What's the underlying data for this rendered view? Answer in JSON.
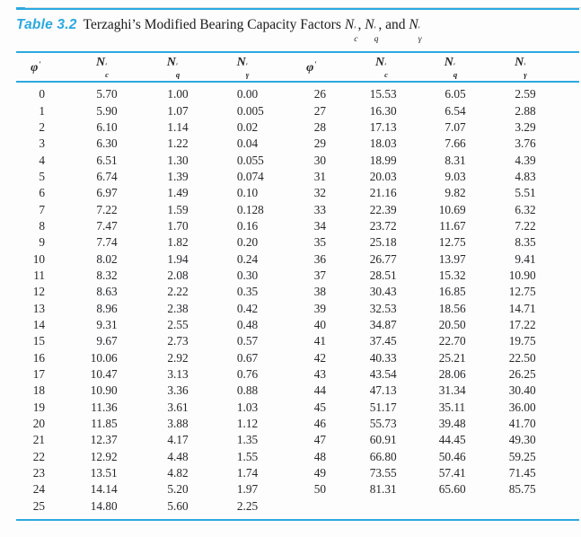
{
  "title": {
    "label": "Table 3.2",
    "text": "Terzaghi’s Modified Bearing Capacity Factors",
    "factors": [
      {
        "base": "N",
        "prime": "′",
        "sub": "c"
      },
      {
        "base": "N",
        "prime": "′",
        "sub": "q"
      },
      {
        "base": "N",
        "prime": "′",
        "sub": "γ"
      }
    ],
    "sep_1": ", ",
    "sep_2": ", and "
  },
  "table": {
    "headers": [
      {
        "base": "φ",
        "prime": "′",
        "sub": ""
      },
      {
        "base": "N",
        "prime": "′",
        "sub": "c"
      },
      {
        "base": "N",
        "prime": "′",
        "sub": "q"
      },
      {
        "base": "N",
        "prime": "′",
        "sub": "γ"
      },
      {
        "base": "φ",
        "prime": "′",
        "sub": ""
      },
      {
        "base": "N",
        "prime": "′",
        "sub": "c"
      },
      {
        "base": "N",
        "prime": "′",
        "sub": "q"
      },
      {
        "base": "N",
        "prime": "′",
        "sub": "γ"
      }
    ],
    "column_kinds": [
      "phi",
      "Nc",
      "Nq",
      "Ngamma",
      "phi",
      "Nc",
      "Nq",
      "Ngamma"
    ],
    "rows_left": [
      [
        "0",
        "5.70",
        "1.00",
        "0.00"
      ],
      [
        "1",
        "5.90",
        "1.07",
        "0.005"
      ],
      [
        "2",
        "6.10",
        "1.14",
        "0.02"
      ],
      [
        "3",
        "6.30",
        "1.22",
        "0.04"
      ],
      [
        "4",
        "6.51",
        "1.30",
        "0.055"
      ],
      [
        "5",
        "6.74",
        "1.39",
        "0.074"
      ],
      [
        "6",
        "6.97",
        "1.49",
        "0.10"
      ],
      [
        "7",
        "7.22",
        "1.59",
        "0.128"
      ],
      [
        "8",
        "7.47",
        "1.70",
        "0.16"
      ],
      [
        "9",
        "7.74",
        "1.82",
        "0.20"
      ],
      [
        "10",
        "8.02",
        "1.94",
        "0.24"
      ],
      [
        "11",
        "8.32",
        "2.08",
        "0.30"
      ],
      [
        "12",
        "8.63",
        "2.22",
        "0.35"
      ],
      [
        "13",
        "8.96",
        "2.38",
        "0.42"
      ],
      [
        "14",
        "9.31",
        "2.55",
        "0.48"
      ],
      [
        "15",
        "9.67",
        "2.73",
        "0.57"
      ],
      [
        "16",
        "10.06",
        "2.92",
        "0.67"
      ],
      [
        "17",
        "10.47",
        "3.13",
        "0.76"
      ],
      [
        "18",
        "10.90",
        "3.36",
        "0.88"
      ],
      [
        "19",
        "11.36",
        "3.61",
        "1.03"
      ],
      [
        "20",
        "11.85",
        "3.88",
        "1.12"
      ],
      [
        "21",
        "12.37",
        "4.17",
        "1.35"
      ],
      [
        "22",
        "12.92",
        "4.48",
        "1.55"
      ],
      [
        "23",
        "13.51",
        "4.82",
        "1.74"
      ],
      [
        "24",
        "14.14",
        "5.20",
        "1.97"
      ],
      [
        "25",
        "14.80",
        "5.60",
        "2.25"
      ]
    ],
    "rows_right": [
      [
        "26",
        "15.53",
        "6.05",
        "2.59"
      ],
      [
        "27",
        "16.30",
        "6.54",
        "2.88"
      ],
      [
        "28",
        "17.13",
        "7.07",
        "3.29"
      ],
      [
        "29",
        "18.03",
        "7.66",
        "3.76"
      ],
      [
        "30",
        "18.99",
        "8.31",
        "4.39"
      ],
      [
        "31",
        "20.03",
        "9.03",
        "4.83"
      ],
      [
        "32",
        "21.16",
        "9.82",
        "5.51"
      ],
      [
        "33",
        "22.39",
        "10.69",
        "6.32"
      ],
      [
        "34",
        "23.72",
        "11.67",
        "7.22"
      ],
      [
        "35",
        "25.18",
        "12.75",
        "8.35"
      ],
      [
        "36",
        "26.77",
        "13.97",
        "9.41"
      ],
      [
        "37",
        "28.51",
        "15.32",
        "10.90"
      ],
      [
        "38",
        "30.43",
        "16.85",
        "12.75"
      ],
      [
        "39",
        "32.53",
        "18.56",
        "14.71"
      ],
      [
        "40",
        "34.87",
        "20.50",
        "17.22"
      ],
      [
        "41",
        "37.45",
        "22.70",
        "19.75"
      ],
      [
        "42",
        "40.33",
        "25.21",
        "22.50"
      ],
      [
        "43",
        "43.54",
        "28.06",
        "26.25"
      ],
      [
        "44",
        "47.13",
        "31.34",
        "30.40"
      ],
      [
        "45",
        "51.17",
        "35.11",
        "36.00"
      ],
      [
        "46",
        "55.73",
        "39.48",
        "41.70"
      ],
      [
        "47",
        "60.91",
        "44.45",
        "49.30"
      ],
      [
        "48",
        "66.80",
        "50.46",
        "59.25"
      ],
      [
        "49",
        "73.55",
        "57.41",
        "71.45"
      ],
      [
        "50",
        "81.31",
        "65.60",
        "85.75"
      ]
    ]
  },
  "colors": {
    "accent": "#2ba9e0",
    "text": "#26272a"
  }
}
